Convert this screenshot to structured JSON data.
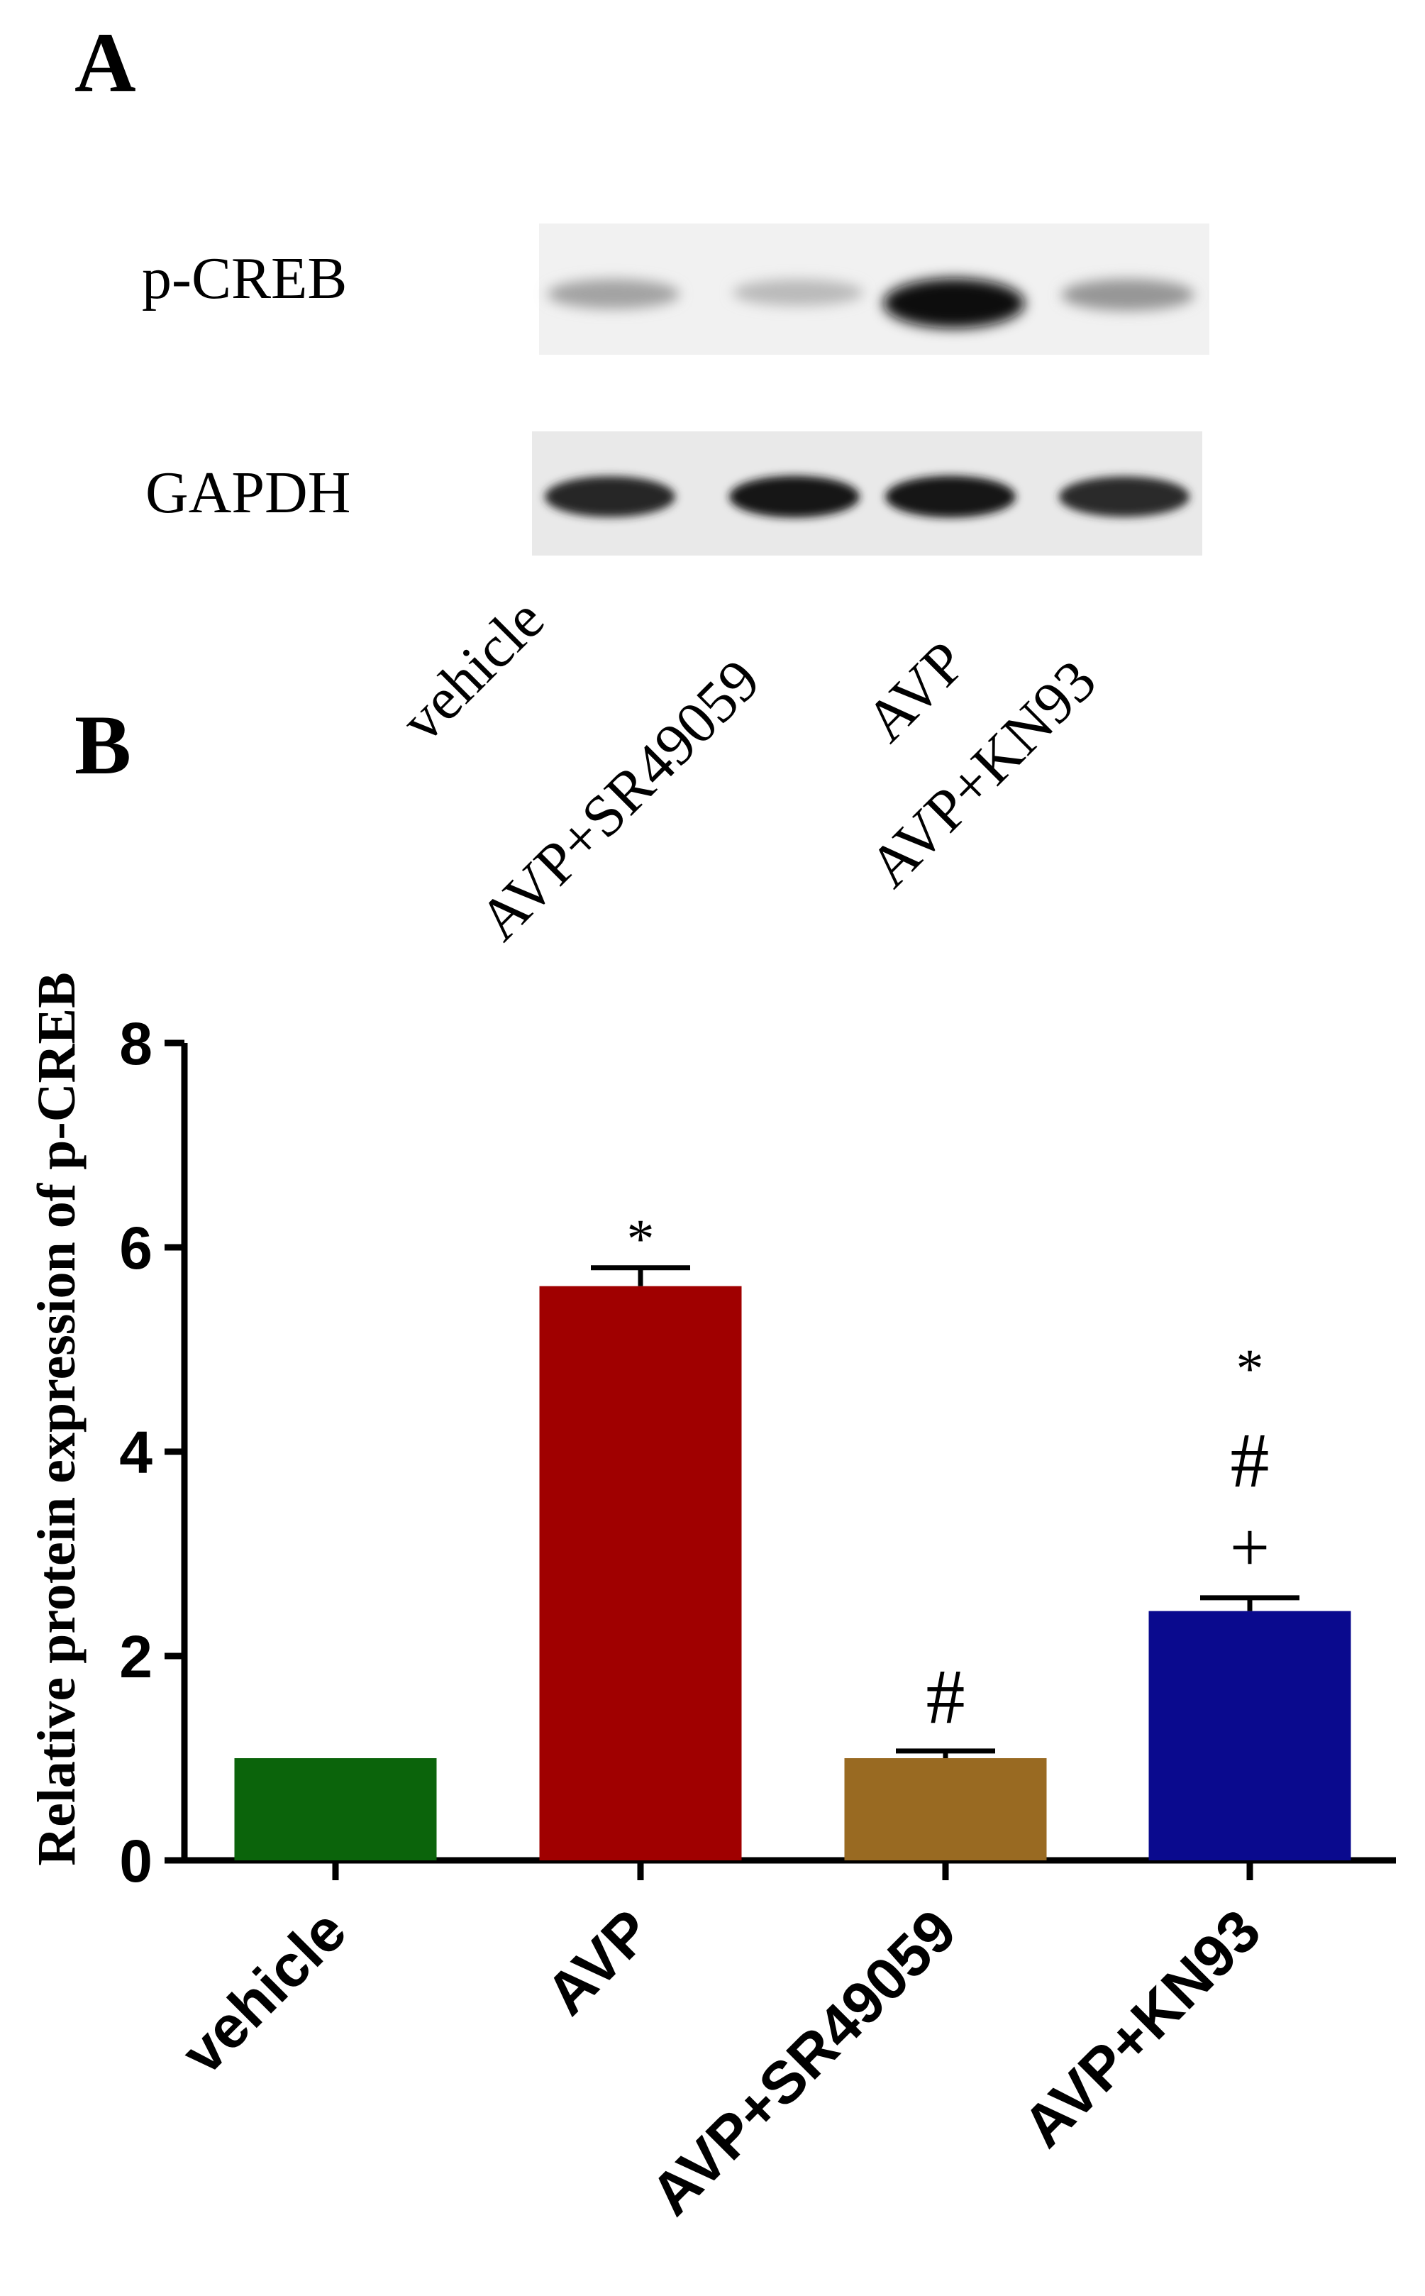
{
  "panel_a": {
    "label": "A",
    "blot_rows": [
      "p-CREB",
      "GAPDH"
    ],
    "lanes": [
      "vehicle",
      "AVP+SR49059",
      "AVP",
      "AVP+KN93"
    ],
    "pcreb_intensity": [
      0.32,
      0.22,
      0.97,
      0.38
    ],
    "gapdh_intensity": [
      0.88,
      0.95,
      0.95,
      0.86
    ]
  },
  "panel_b": {
    "label": "B"
  },
  "chart_data": {
    "type": "bar",
    "title": "",
    "xlabel": "",
    "ylabel": "Relative protein expression of p-CREB",
    "categories": [
      "vehicle",
      "AVP",
      "AVP+SR49059",
      "AVP+KN93"
    ],
    "values": [
      1.0,
      5.62,
      1.0,
      2.44
    ],
    "errors": [
      0,
      0.18,
      0.07,
      0.13
    ],
    "colors": [
      "#0b640b",
      "#a00000",
      "#996a22",
      "#0a0a8e"
    ],
    "annotations": [
      "",
      "*",
      "#",
      "+ # *"
    ],
    "ylim": [
      0,
      8
    ],
    "yticks": [
      "0",
      "2",
      "4",
      "6",
      "8"
    ],
    "grid": false
  }
}
